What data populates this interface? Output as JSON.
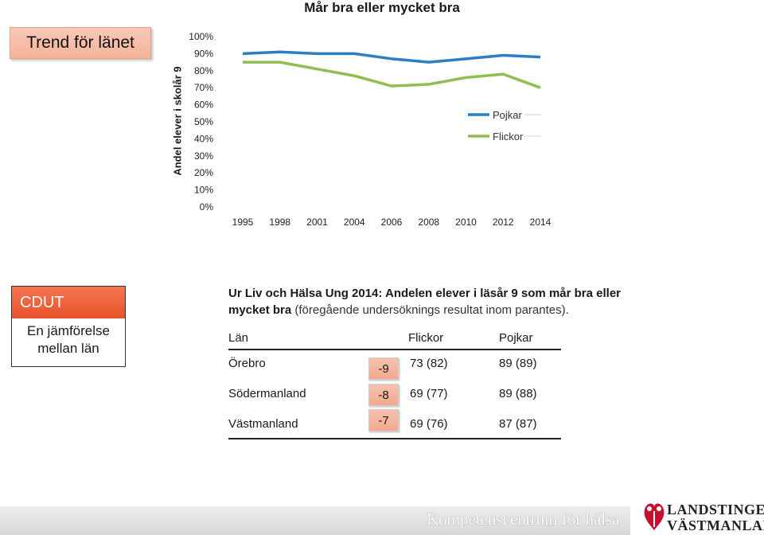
{
  "header": {
    "title": "Mår bra eller mycket bra",
    "trend_label": "Trend för länet"
  },
  "chart_data": {
    "type": "line",
    "title": "Mår bra eller mycket bra",
    "ylabel": "Andel elever i skolår 9",
    "xlabel": "",
    "categories": [
      "1995",
      "1998",
      "2001",
      "2004",
      "2006",
      "2008",
      "2010",
      "2012",
      "2014"
    ],
    "y_ticks": [
      "0%",
      "10%",
      "20%",
      "30%",
      "40%",
      "50%",
      "60%",
      "70%",
      "80%",
      "90%",
      "100%"
    ],
    "ylim": [
      0,
      100
    ],
    "grid": false,
    "legend_position": "right",
    "series": [
      {
        "name": "Pojkar",
        "color": "#2a7fc4",
        "values": [
          90,
          91,
          90,
          90,
          87,
          85,
          87,
          89,
          88
        ]
      },
      {
        "name": "Flickor",
        "color": "#8fbf4f",
        "values": [
          85,
          85,
          81,
          77,
          71,
          72,
          76,
          78,
          70
        ]
      }
    ]
  },
  "cdut": {
    "heading": "CDUT",
    "subtitle_line1": "En jämförelse",
    "subtitle_line2": "mellan län"
  },
  "description": {
    "bold": "Ur Liv och Hälsa Ung 2014: Andelen elever i läsår 9 som mår bra eller mycket",
    "bold2": "bra",
    "rest": "(föregående undersöknings resultat inom parantes)."
  },
  "table": {
    "headers": [
      "Län",
      "Flickor",
      "Pojkar"
    ],
    "rows": [
      {
        "lan": "Örebro",
        "diff": "-9",
        "flickor": "73 (82)",
        "pojkar": "89 (89)"
      },
      {
        "lan": "Södermanland",
        "diff": "-8",
        "flickor": "69 (77)",
        "pojkar": "89 (88)"
      },
      {
        "lan": "Västmanland",
        "diff": "-7",
        "flickor": "69 (76)",
        "pojkar": "87 (87)"
      }
    ]
  },
  "footer": {
    "text": "Kompetenscentrum för hälsa",
    "logo_line1": "LANDSTINGET",
    "logo_line2": "VÄSTMANLAND",
    "logo_icon": "landstinget-logo-icon"
  }
}
